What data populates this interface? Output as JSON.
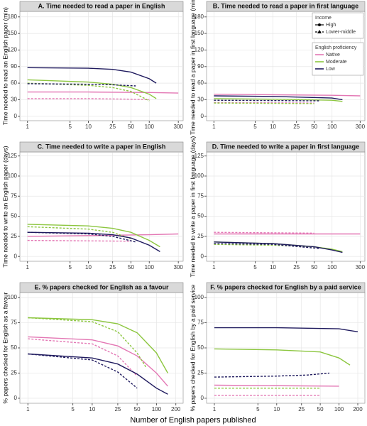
{
  "x_label": "Number of English papers published",
  "legend": {
    "income_title": "Income",
    "income": [
      {
        "label": "High",
        "dashed": false
      },
      {
        "label": "Lower-middle",
        "dashed": true
      }
    ],
    "proficiency_title": "English proficiency",
    "proficiency": [
      {
        "label": "Native",
        "color": "#e377b4"
      },
      {
        "label": "Moderate",
        "color": "#8cc63f"
      },
      {
        "label": "Low",
        "color": "#1f1a5e"
      }
    ]
  },
  "chart_data": [
    {
      "type": "line",
      "title": "A. Time needed to read a paper in English",
      "y_label": "Time needed to read an English paper (min)",
      "xscale": "log",
      "grid": true,
      "xlim": [
        0.75,
        360
      ],
      "xticks": [
        1,
        5,
        10,
        25,
        50,
        100,
        300
      ],
      "ylim": [
        -8,
        190
      ],
      "yticks": [
        0,
        30,
        60,
        90,
        120,
        150,
        180
      ],
      "series": [
        {
          "color": "#e377b4",
          "dashed": false,
          "x": [
            1,
            10,
            100,
            300
          ],
          "values": [
            44,
            44,
            43,
            42
          ]
        },
        {
          "color": "#e377b4",
          "dashed": true,
          "x": [
            1,
            10,
            50,
            100
          ],
          "values": [
            32,
            32,
            31,
            30
          ]
        },
        {
          "color": "#8cc63f",
          "dashed": false,
          "x": [
            1,
            10,
            25,
            50,
            100,
            130
          ],
          "values": [
            66,
            62,
            58,
            52,
            40,
            32
          ]
        },
        {
          "color": "#8cc63f",
          "dashed": true,
          "x": [
            1,
            10,
            25,
            50,
            100
          ],
          "values": [
            60,
            56,
            52,
            45,
            28
          ]
        },
        {
          "color": "#1f1a5e",
          "dashed": false,
          "x": [
            1,
            10,
            25,
            50,
            100,
            130
          ],
          "values": [
            88,
            87,
            85,
            80,
            68,
            60
          ]
        },
        {
          "color": "#1f1a5e",
          "dashed": true,
          "x": [
            1,
            10,
            25,
            60
          ],
          "values": [
            59,
            58,
            57,
            55
          ]
        }
      ]
    },
    {
      "type": "line",
      "title": "B. Time needed to read a paper in first language",
      "y_label": "Time needed to read a paper in first language (min)",
      "xscale": "log",
      "grid": true,
      "xlim": [
        0.75,
        360
      ],
      "xticks": [
        1,
        5,
        10,
        25,
        50,
        100,
        300
      ],
      "ylim": [
        -8,
        190
      ],
      "yticks": [
        0,
        30,
        60,
        90,
        120,
        150,
        180
      ],
      "series": [
        {
          "color": "#e377b4",
          "dashed": false,
          "x": [
            1,
            100,
            300
          ],
          "values": [
            40,
            38,
            37
          ]
        },
        {
          "color": "#e377b4",
          "dashed": true,
          "x": [
            1,
            50
          ],
          "values": [
            25,
            24
          ]
        },
        {
          "color": "#8cc63f",
          "dashed": false,
          "x": [
            1,
            10,
            100,
            150
          ],
          "values": [
            32,
            31,
            29,
            27
          ]
        },
        {
          "color": "#8cc63f",
          "dashed": true,
          "x": [
            1,
            50
          ],
          "values": [
            24,
            23
          ]
        },
        {
          "color": "#1f1a5e",
          "dashed": false,
          "x": [
            1,
            10,
            100,
            150
          ],
          "values": [
            37,
            36,
            33,
            30
          ]
        },
        {
          "color": "#1f1a5e",
          "dashed": true,
          "x": [
            1,
            60
          ],
          "values": [
            29,
            28
          ]
        }
      ]
    },
    {
      "type": "line",
      "title": "C. Time needed to write a paper in English",
      "y_label": "Time needed to write an English paper (days)",
      "xscale": "log",
      "grid": true,
      "xlim": [
        0.75,
        360
      ],
      "xticks": [
        1,
        5,
        10,
        25,
        50,
        100,
        300
      ],
      "ylim": [
        -6,
        130
      ],
      "yticks": [
        0,
        25,
        50,
        75,
        100,
        125
      ],
      "series": [
        {
          "color": "#e377b4",
          "dashed": false,
          "x": [
            1,
            10,
            100,
            300
          ],
          "values": [
            25,
            26,
            27,
            28
          ]
        },
        {
          "color": "#e377b4",
          "dashed": true,
          "x": [
            1,
            50
          ],
          "values": [
            20,
            19
          ]
        },
        {
          "color": "#8cc63f",
          "dashed": false,
          "x": [
            1,
            10,
            25,
            50,
            100,
            150
          ],
          "values": [
            40,
            38,
            35,
            30,
            20,
            12
          ]
        },
        {
          "color": "#8cc63f",
          "dashed": true,
          "x": [
            1,
            10,
            25,
            50
          ],
          "values": [
            37,
            34,
            30,
            22
          ]
        },
        {
          "color": "#1f1a5e",
          "dashed": false,
          "x": [
            1,
            10,
            25,
            50,
            100,
            150
          ],
          "values": [
            30,
            29,
            27,
            23,
            14,
            6
          ]
        },
        {
          "color": "#1f1a5e",
          "dashed": true,
          "x": [
            1,
            10,
            25,
            60
          ],
          "values": [
            30,
            28,
            25,
            18
          ]
        }
      ]
    },
    {
      "type": "line",
      "title": "D. Time needed to write a paper in first language",
      "y_label": "Time needed to write a paper in first language (days)",
      "xscale": "log",
      "grid": true,
      "xlim": [
        0.75,
        360
      ],
      "xticks": [
        1,
        5,
        10,
        25,
        50,
        100,
        300
      ],
      "ylim": [
        -6,
        130
      ],
      "yticks": [
        0,
        25,
        50,
        75,
        100,
        125
      ],
      "series": [
        {
          "color": "#e377b4",
          "dashed": false,
          "x": [
            1,
            10,
            100,
            300
          ],
          "values": [
            28,
            28,
            28,
            28
          ]
        },
        {
          "color": "#e377b4",
          "dashed": true,
          "x": [
            1,
            50
          ],
          "values": [
            30,
            29
          ]
        },
        {
          "color": "#8cc63f",
          "dashed": false,
          "x": [
            1,
            10,
            50,
            100,
            150
          ],
          "values": [
            18,
            16,
            12,
            9,
            6
          ]
        },
        {
          "color": "#8cc63f",
          "dashed": true,
          "x": [
            1,
            10,
            50
          ],
          "values": [
            15,
            14,
            12
          ]
        },
        {
          "color": "#1f1a5e",
          "dashed": false,
          "x": [
            1,
            10,
            50,
            100,
            150
          ],
          "values": [
            18,
            16,
            12,
            8,
            5
          ]
        },
        {
          "color": "#1f1a5e",
          "dashed": true,
          "x": [
            1,
            10,
            60
          ],
          "values": [
            16,
            15,
            10
          ]
        }
      ]
    },
    {
      "type": "line",
      "title": "E. % papers checked for English as a favour",
      "y_label": "% papers checked for English as a favour",
      "xscale": "log",
      "grid": true,
      "xlim": [
        0.75,
        260
      ],
      "xticks": [
        1,
        5,
        10,
        25,
        50,
        100,
        200
      ],
      "ylim": [
        -5,
        105
      ],
      "yticks": [
        0,
        25,
        50,
        75,
        100
      ],
      "series": [
        {
          "color": "#e377b4",
          "dashed": false,
          "x": [
            1,
            10,
            25,
            50,
            100,
            150
          ],
          "values": [
            61,
            58,
            52,
            42,
            25,
            12
          ]
        },
        {
          "color": "#e377b4",
          "dashed": true,
          "x": [
            1,
            10,
            25,
            50
          ],
          "values": [
            59,
            54,
            42,
            22
          ]
        },
        {
          "color": "#8cc63f",
          "dashed": false,
          "x": [
            1,
            10,
            25,
            50,
            100,
            150
          ],
          "values": [
            80,
            78,
            74,
            65,
            45,
            25
          ]
        },
        {
          "color": "#8cc63f",
          "dashed": true,
          "x": [
            1,
            10,
            25,
            50,
            70
          ],
          "values": [
            80,
            76,
            66,
            45,
            30
          ]
        },
        {
          "color": "#1f1a5e",
          "dashed": false,
          "x": [
            1,
            10,
            25,
            50,
            100,
            150
          ],
          "values": [
            44,
            40,
            34,
            24,
            10,
            4
          ]
        },
        {
          "color": "#1f1a5e",
          "dashed": true,
          "x": [
            1,
            10,
            25,
            50
          ],
          "values": [
            44,
            38,
            26,
            10
          ]
        }
      ]
    },
    {
      "type": "line",
      "title": "F. % papers checked for English by a paid service",
      "y_label": "% papers checked for English by a paid service",
      "xscale": "log",
      "grid": true,
      "xlim": [
        0.75,
        260
      ],
      "xticks": [
        1,
        5,
        10,
        25,
        50,
        100,
        200
      ],
      "ylim": [
        -5,
        105
      ],
      "yticks": [
        0,
        25,
        50,
        75,
        100
      ],
      "series": [
        {
          "color": "#e377b4",
          "dashed": false,
          "x": [
            1,
            100
          ],
          "values": [
            13,
            12
          ]
        },
        {
          "color": "#e377b4",
          "dashed": true,
          "x": [
            1,
            50
          ],
          "values": [
            3,
            3
          ]
        },
        {
          "color": "#8cc63f",
          "dashed": false,
          "x": [
            1,
            10,
            50,
            100,
            150
          ],
          "values": [
            49,
            48,
            46,
            40,
            33
          ]
        },
        {
          "color": "#8cc63f",
          "dashed": true,
          "x": [
            1,
            50
          ],
          "values": [
            10,
            10
          ]
        },
        {
          "color": "#1f1a5e",
          "dashed": false,
          "x": [
            1,
            10,
            100,
            200
          ],
          "values": [
            70,
            70,
            69,
            66
          ]
        },
        {
          "color": "#1f1a5e",
          "dashed": true,
          "x": [
            1,
            10,
            30,
            70
          ],
          "values": [
            21,
            22,
            23,
            25
          ]
        }
      ]
    }
  ]
}
